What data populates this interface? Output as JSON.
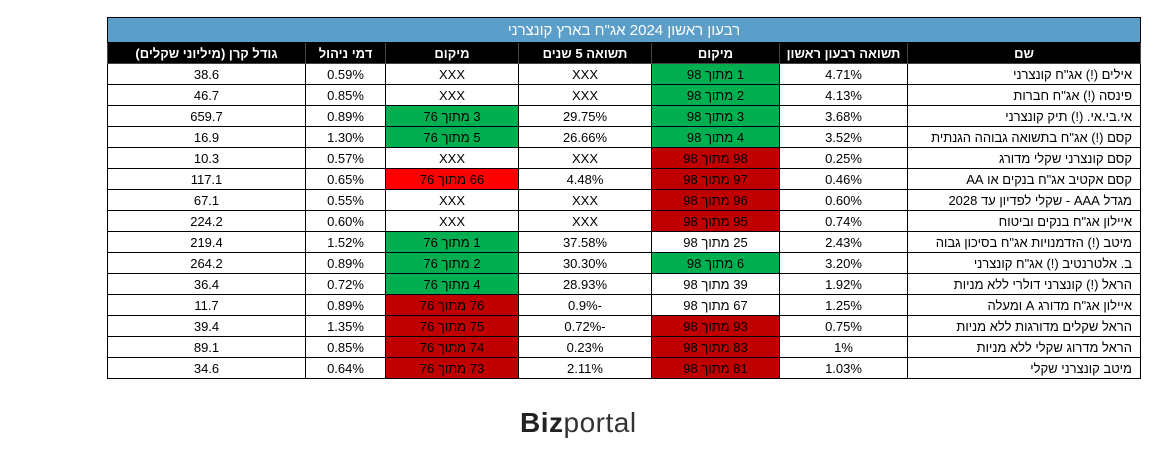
{
  "title": "רבעון ראשון 2024 אג\"ח בארץ קונצרני",
  "headers": [
    "שם",
    "תשואה רבעון ראשון",
    "מיקום",
    "תשואה 5 שנים",
    "מיקום",
    "דמי ניהול",
    "גודל קרן (מיליוני שקלים)"
  ],
  "rows": [
    {
      "name": "אילים (!) אג\"ח קונצרני",
      "q1": "4.71%",
      "rank_q1": "1 מתוך 98",
      "rank_q1_color": "green",
      "y5": "XXX",
      "rank_5y": "XXX",
      "rank_5y_color": "",
      "fee": "0.59%",
      "size": "38.6"
    },
    {
      "name": "פינסה (!) אג\"ח חברות",
      "q1": "4.13%",
      "rank_q1": "2 מתוך 98",
      "rank_q1_color": "green",
      "y5": "XXX",
      "rank_5y": "XXX",
      "rank_5y_color": "",
      "fee": "0.85%",
      "size": "46.7"
    },
    {
      "name": "אי.בי.אי. (!) תיק קונצרני",
      "q1": "3.68%",
      "rank_q1": "3 מתוך 98",
      "rank_q1_color": "green",
      "y5": "29.75%",
      "rank_5y": "3 מתוך 76",
      "rank_5y_color": "green",
      "fee": "0.89%",
      "size": "659.7"
    },
    {
      "name": "קסם (!) אג\"ח בתשואה גבוהה הגנתית",
      "q1": "3.52%",
      "rank_q1": "4 מתוך 98",
      "rank_q1_color": "green",
      "y5": "26.66%",
      "rank_5y": "5 מתוך 76",
      "rank_5y_color": "green",
      "fee": "1.30%",
      "size": "16.9"
    },
    {
      "name": "קסם קונצרני שקלי מדורג",
      "q1": "0.25%",
      "rank_q1": "98 מתוך 98",
      "rank_q1_color": "darkred",
      "y5": "XXX",
      "rank_5y": "XXX",
      "rank_5y_color": "",
      "fee": "0.57%",
      "size": "10.3"
    },
    {
      "name": "קסם אקטיב אג\"ח בנקים או AA",
      "q1": "0.46%",
      "rank_q1": "97 מתוך 98",
      "rank_q1_color": "darkred",
      "y5": "4.48%",
      "rank_5y": "66 מתוך 76",
      "rank_5y_color": "red",
      "fee": "0.65%",
      "size": "117.1"
    },
    {
      "name": "מגדל AAA - שקלי לפדיון עד 2028",
      "q1": "0.60%",
      "rank_q1": "96 מתוך 98",
      "rank_q1_color": "darkred",
      "y5": "XXX",
      "rank_5y": "XXX",
      "rank_5y_color": "",
      "fee": "0.55%",
      "size": "67.1"
    },
    {
      "name": "איילון אג\"ח בנקים וביטוח",
      "q1": "0.74%",
      "rank_q1": "95 מתוך 98",
      "rank_q1_color": "darkred",
      "y5": "XXX",
      "rank_5y": "XXX",
      "rank_5y_color": "",
      "fee": "0.60%",
      "size": "224.2"
    },
    {
      "name": "מיטב (!) הזדמנויות אג\"ח בסיכון גבוה",
      "q1": "2.43%",
      "rank_q1": "25 מתוך 98",
      "rank_q1_color": "",
      "y5": "37.58%",
      "rank_5y": "1 מתוך 76",
      "rank_5y_color": "green",
      "fee": "1.52%",
      "size": "219.4"
    },
    {
      "name": "ב. אלטרנטיב (!) אג\"ח קונצרני",
      "q1": "3.20%",
      "rank_q1": "6 מתוך 98",
      "rank_q1_color": "green",
      "y5": "30.30%",
      "rank_5y": "2 מתוך 76",
      "rank_5y_color": "green",
      "fee": "0.89%",
      "size": "264.2"
    },
    {
      "name": "הראל (!) קונצרני דולרי ללא מניות",
      "q1": "1.92%",
      "rank_q1": "39 מתוך 98",
      "rank_q1_color": "",
      "y5": "28.93%",
      "rank_5y": "4 מתוך 76",
      "rank_5y_color": "green",
      "fee": "0.72%",
      "size": "36.4"
    },
    {
      "name": "איילון אג\"ח מדורג A ומעלה",
      "q1": "1.25%",
      "rank_q1": "67 מתוך 98",
      "rank_q1_color": "",
      "y5": "-0.9%",
      "rank_5y": "76 מתוך 76",
      "rank_5y_color": "darkred",
      "fee": "0.89%",
      "size": "11.7"
    },
    {
      "name": "הראל שקלים מדורגות ללא מניות",
      "q1": "0.75%",
      "rank_q1": "93 מתוך 98",
      "rank_q1_color": "darkred",
      "y5": "-0.72%",
      "rank_5y": "75 מתוך 76",
      "rank_5y_color": "darkred",
      "fee": "1.35%",
      "size": "39.4"
    },
    {
      "name": "הראל מדרוג שקלי ללא מניות",
      "q1": "1%",
      "rank_q1": "83 מתוך 98",
      "rank_q1_color": "darkred",
      "y5": "0.23%",
      "rank_5y": "74 מתוך 76",
      "rank_5y_color": "darkred",
      "fee": "0.85%",
      "size": "89.1"
    },
    {
      "name": "מיטב קונצרני שקלי",
      "q1": "1.03%",
      "rank_q1": "81 מתוך 98",
      "rank_q1_color": "darkred",
      "y5": "2.11%",
      "rank_5y": "73 מתוך 76",
      "rank_5y_color": "darkred",
      "fee": "0.64%",
      "size": "34.6"
    }
  ],
  "logo": {
    "bold": "Biz",
    "light": "portal"
  }
}
